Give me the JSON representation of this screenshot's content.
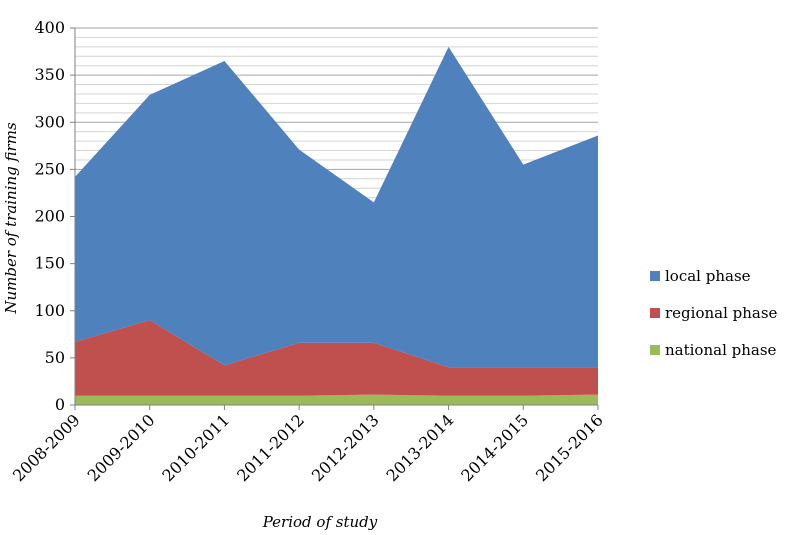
{
  "chart_data": {
    "type": "area",
    "stacked": true,
    "categories": [
      "2008-2009",
      "2009-2010",
      "2010-2011",
      "2011-2012",
      "2012-2013",
      "2013-2014",
      "2014-2015",
      "2015-2016"
    ],
    "series": [
      {
        "name": "national phase",
        "color": "#9bbb59",
        "values": [
          10,
          10,
          10,
          10,
          11,
          10,
          10,
          11
        ]
      },
      {
        "name": "regional phase",
        "color": "#c0504d",
        "values": [
          57,
          80,
          32,
          56,
          55,
          30,
          30,
          29
        ]
      },
      {
        "name": "local phase",
        "color": "#4f81bd",
        "values": [
          175,
          239,
          323,
          205,
          149,
          340,
          215,
          246
        ]
      }
    ],
    "title": "",
    "xlabel": "Period of study",
    "ylabel": "Number of training firms",
    "ylim": [
      0,
      400
    ],
    "yticks": [
      0,
      50,
      100,
      150,
      200,
      250,
      300,
      350,
      400
    ],
    "grid": true,
    "legend_position": "right",
    "legend_order": [
      "local phase",
      "regional phase",
      "national phase"
    ]
  }
}
